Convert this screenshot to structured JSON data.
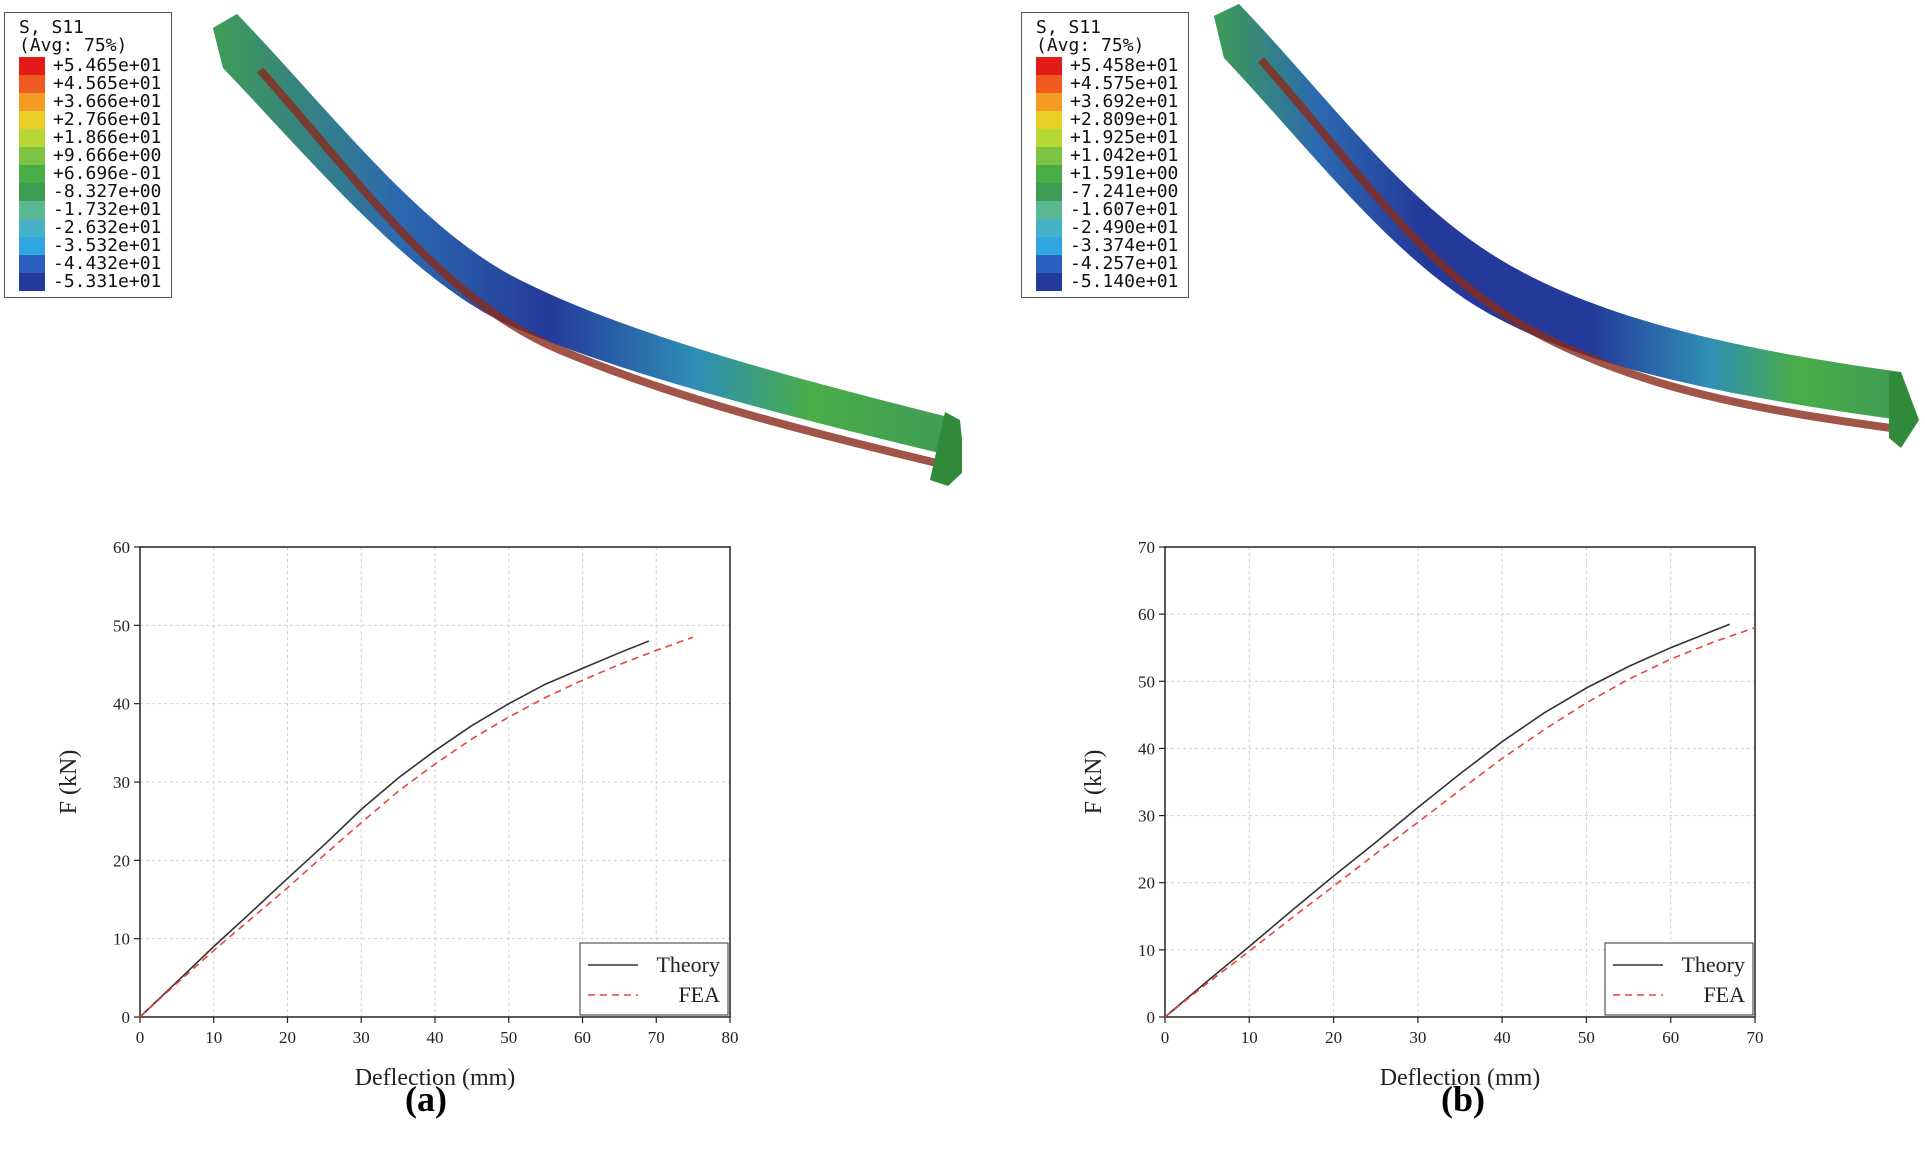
{
  "panels": [
    {
      "id": "a",
      "caption": "(a)",
      "contour_legend": {
        "title": "S, S11",
        "subtitle": "(Avg: 75%)",
        "values": [
          "+5.465e+01",
          "+4.565e+01",
          "+3.666e+01",
          "+2.766e+01",
          "+1.866e+01",
          "+9.666e+00",
          "+6.696e-01",
          "-8.327e+00",
          "-1.732e+01",
          "-2.632e+01",
          "-3.532e+01",
          "-4.432e+01",
          "-5.331e+01"
        ],
        "colors": [
          "#e21a1a",
          "#ef5a1e",
          "#f59a22",
          "#e8cf25",
          "#b7d735",
          "#7cc243",
          "#49ad48",
          "#3f9c55",
          "#5bb991",
          "#47b2c7",
          "#2fa6df",
          "#2c5ec0",
          "#243a9a"
        ]
      }
    },
    {
      "id": "b",
      "caption": "(b)",
      "contour_legend": {
        "title": "S, S11",
        "subtitle": "(Avg: 75%)",
        "values": [
          "+5.458e+01",
          "+4.575e+01",
          "+3.692e+01",
          "+2.809e+01",
          "+1.925e+01",
          "+1.042e+01",
          "+1.591e+00",
          "-7.241e+00",
          "-1.607e+01",
          "-2.490e+01",
          "-3.374e+01",
          "-4.257e+01",
          "-5.140e+01"
        ],
        "colors": [
          "#e21a1a",
          "#ef5a1e",
          "#f59a22",
          "#e8cf25",
          "#b7d735",
          "#7cc243",
          "#49ad48",
          "#3f9c55",
          "#5bb991",
          "#47b2c7",
          "#2fa6df",
          "#2c5ec0",
          "#243a9a"
        ]
      }
    }
  ],
  "chart_data": [
    {
      "type": "line",
      "xlabel": "Deflection (mm)",
      "ylabel": "F (kN)",
      "xlim": [
        0,
        80
      ],
      "ylim": [
        0,
        60
      ],
      "xticks": [
        0,
        10,
        20,
        30,
        40,
        50,
        60,
        70,
        80
      ],
      "yticks": [
        0,
        10,
        20,
        30,
        40,
        50,
        60
      ],
      "grid": true,
      "legend_position": "bottom-right",
      "series": [
        {
          "name": "Theory",
          "color": "#333333",
          "dash": "solid",
          "x": [
            0,
            5,
            10,
            15,
            20,
            25,
            30,
            35,
            40,
            45,
            50,
            55,
            60,
            65,
            69
          ],
          "y": [
            0,
            4.5,
            9.0,
            13.3,
            17.7,
            22.0,
            26.5,
            30.5,
            34.0,
            37.2,
            40.0,
            42.5,
            44.5,
            46.5,
            48.0
          ]
        },
        {
          "name": "FEA",
          "color": "#e8453c",
          "dash": "dashed",
          "x": [
            0,
            5,
            10,
            15,
            20,
            25,
            30,
            35,
            40,
            45,
            50,
            55,
            60,
            65,
            70,
            75
          ],
          "y": [
            0,
            4.3,
            8.5,
            12.5,
            16.5,
            20.7,
            24.8,
            28.8,
            32.3,
            35.5,
            38.3,
            40.8,
            43.0,
            45.0,
            46.8,
            48.5
          ]
        }
      ]
    },
    {
      "type": "line",
      "xlabel": "Deflection (mm)",
      "ylabel": "F (kN)",
      "xlim": [
        0,
        70
      ],
      "ylim": [
        0,
        70
      ],
      "xticks": [
        0,
        10,
        20,
        30,
        40,
        50,
        60,
        70
      ],
      "yticks": [
        0,
        10,
        20,
        30,
        40,
        50,
        60,
        70
      ],
      "grid": true,
      "legend_position": "bottom-right",
      "series": [
        {
          "name": "Theory",
          "color": "#333333",
          "dash": "solid",
          "x": [
            0,
            5,
            10,
            15,
            20,
            25,
            30,
            35,
            40,
            45,
            50,
            55,
            60,
            65,
            67
          ],
          "y": [
            0,
            5.3,
            10.5,
            15.8,
            21.0,
            26.0,
            31.2,
            36.2,
            41.0,
            45.3,
            49.0,
            52.2,
            55.0,
            57.5,
            58.5
          ]
        },
        {
          "name": "FEA",
          "color": "#e8453c",
          "dash": "dashed",
          "x": [
            0,
            5,
            10,
            15,
            20,
            25,
            30,
            35,
            40,
            45,
            50,
            55,
            60,
            65,
            70
          ],
          "y": [
            0,
            5.0,
            9.8,
            14.7,
            19.5,
            24.3,
            29.0,
            33.8,
            38.5,
            42.8,
            46.8,
            50.3,
            53.3,
            55.8,
            58.0
          ]
        }
      ]
    }
  ]
}
